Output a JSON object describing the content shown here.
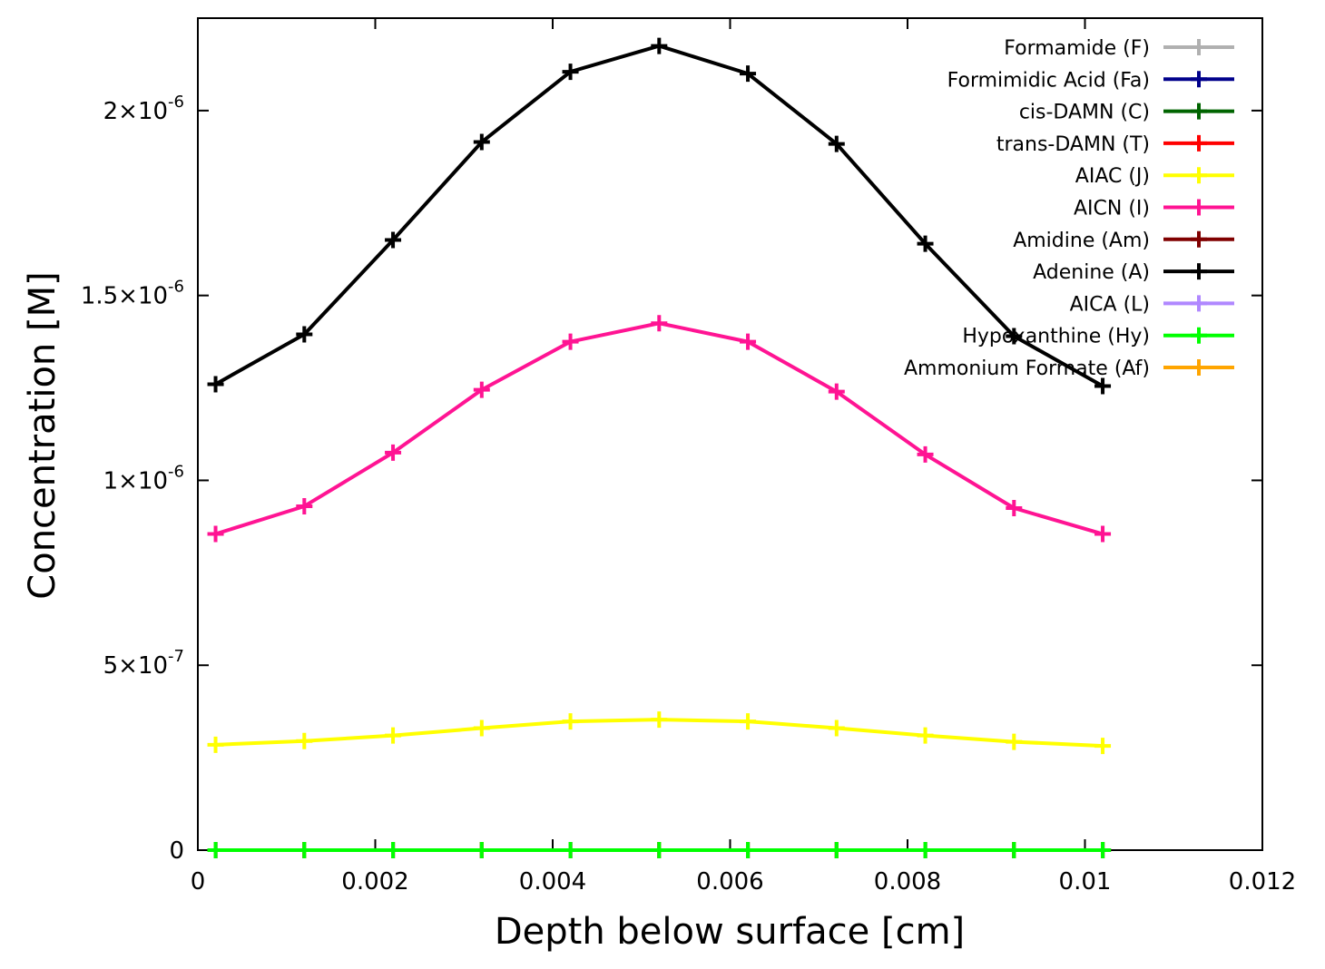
{
  "chart_data": {
    "type": "line",
    "title": "",
    "xlabel": "Depth below surface [cm]",
    "ylabel": "Concentration [M]",
    "xlim": [
      0,
      0.012
    ],
    "ylim": [
      0,
      2.25e-06
    ],
    "grid": false,
    "legend_position": "top-right",
    "x_ticks": [
      {
        "value": 0,
        "label": "0"
      },
      {
        "value": 0.002,
        "label": "0.002"
      },
      {
        "value": 0.004,
        "label": "0.004"
      },
      {
        "value": 0.006,
        "label": "0.006"
      },
      {
        "value": 0.008,
        "label": "0.008"
      },
      {
        "value": 0.01,
        "label": "0.01"
      },
      {
        "value": 0.012,
        "label": "0.012"
      }
    ],
    "y_ticks": [
      {
        "value": 0,
        "mant": "0",
        "exp": ""
      },
      {
        "value": 5e-07,
        "mant": "5×10",
        "exp": "-7"
      },
      {
        "value": 1e-06,
        "mant": "1×10",
        "exp": "-6"
      },
      {
        "value": 1.5e-06,
        "mant": "1.5×10",
        "exp": "-6"
      },
      {
        "value": 2e-06,
        "mant": "2×10",
        "exp": "-6"
      }
    ],
    "x": [
      0.0002,
      0.0012,
      0.0022,
      0.0032,
      0.0042,
      0.0052,
      0.0062,
      0.0072,
      0.0082,
      0.0092,
      0.0102
    ],
    "series": [
      {
        "name": "Formamide (F)",
        "color": "#b0b0b0",
        "values": [
          0,
          0,
          0,
          0,
          0,
          0,
          0,
          0,
          0,
          0,
          0
        ]
      },
      {
        "name": "Formimidic Acid (Fa)",
        "color": "#00008b",
        "values": [
          0,
          0,
          0,
          0,
          0,
          0,
          0,
          0,
          0,
          0,
          0
        ]
      },
      {
        "name": "cis-DAMN (C)",
        "color": "#006400",
        "values": [
          0,
          0,
          0,
          0,
          0,
          0,
          0,
          0,
          0,
          0,
          0
        ]
      },
      {
        "name": "trans-DAMN (T)",
        "color": "#ff0000",
        "values": [
          0,
          0,
          0,
          0,
          0,
          0,
          0,
          0,
          0,
          0,
          0
        ]
      },
      {
        "name": "AIAC (J)",
        "color": "#ffff00",
        "values": [
          2.85e-07,
          2.95e-07,
          3.1e-07,
          3.3e-07,
          3.48e-07,
          3.53e-07,
          3.48e-07,
          3.3e-07,
          3.1e-07,
          2.93e-07,
          2.82e-07
        ]
      },
      {
        "name": "AICN (I)",
        "color": "#ff1493",
        "values": [
          8.55e-07,
          9.3e-07,
          1.075e-06,
          1.245e-06,
          1.375e-06,
          1.425e-06,
          1.375e-06,
          1.24e-06,
          1.07e-06,
          9.25e-07,
          8.55e-07
        ]
      },
      {
        "name": "Amidine (Am)",
        "color": "#800000",
        "values": [
          0,
          0,
          0,
          0,
          0,
          0,
          0,
          0,
          0,
          0,
          0
        ]
      },
      {
        "name": "Adenine (A)",
        "color": "#000000",
        "values": [
          1.26e-06,
          1.395e-06,
          1.65e-06,
          1.915e-06,
          2.105e-06,
          2.175e-06,
          2.1e-06,
          1.91e-06,
          1.64e-06,
          1.39e-06,
          1.255e-06
        ]
      },
      {
        "name": "AICA (L)",
        "color": "#b088ff",
        "values": [
          0,
          0,
          0,
          0,
          0,
          0,
          0,
          0,
          0,
          0,
          0
        ]
      },
      {
        "name": "Hypoxanthine (Hy)",
        "color": "#00ff00",
        "values": [
          0,
          0,
          0,
          0,
          0,
          0,
          0,
          0,
          0,
          0,
          0
        ]
      },
      {
        "name": "Ammonium Formate (Af)",
        "color": "#ffa500",
        "values": [
          0,
          0,
          0,
          0,
          0,
          0,
          0,
          0,
          0,
          0,
          0
        ]
      }
    ]
  }
}
